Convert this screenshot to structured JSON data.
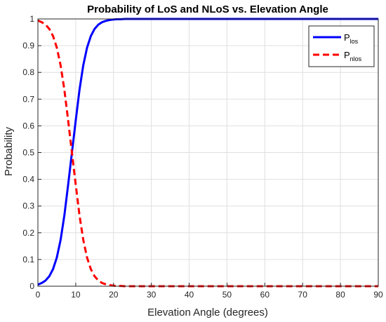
{
  "chart_data": {
    "type": "line",
    "title": "Probability of LoS and NLoS vs. Elevation Angle",
    "xlabel": "Elevation Angle (degrees)",
    "ylabel": "Probability",
    "xlim": [
      0,
      90
    ],
    "ylim": [
      0,
      1
    ],
    "grid": true,
    "legend_position": "top-right",
    "x_ticks": [
      "0",
      "10",
      "20",
      "30",
      "40",
      "50",
      "60",
      "70",
      "80",
      "90"
    ],
    "y_ticks": [
      "0",
      "0.1",
      "0.2",
      "0.3",
      "0.4",
      "0.5",
      "0.6",
      "0.7",
      "0.8",
      "0.9",
      "1"
    ],
    "x": [
      0,
      1,
      2,
      3,
      4,
      5,
      6,
      7,
      8,
      9,
      10,
      11,
      12,
      13,
      14,
      15,
      16,
      17,
      18,
      19,
      20,
      21,
      22,
      23,
      24,
      25,
      30,
      35,
      40,
      45,
      50,
      55,
      60,
      65,
      70,
      75,
      80,
      85,
      90
    ],
    "series": [
      {
        "legend_main": "P",
        "legend_sub": "los",
        "color": "#0000ff",
        "style": "solid",
        "values": [
          0.006,
          0.012,
          0.021,
          0.037,
          0.064,
          0.107,
          0.173,
          0.265,
          0.38,
          0.5,
          0.62,
          0.735,
          0.827,
          0.893,
          0.936,
          0.963,
          0.979,
          0.988,
          0.993,
          0.996,
          0.998,
          0.999,
          0.999,
          1.0,
          1.0,
          1.0,
          1.0,
          1.0,
          1.0,
          1.0,
          1.0,
          1.0,
          1.0,
          1.0,
          1.0,
          1.0,
          1.0,
          1.0,
          1.0
        ]
      },
      {
        "legend_main": "P",
        "legend_sub": "nlos",
        "color": "#ff0000",
        "style": "dashed",
        "values": [
          0.994,
          0.988,
          0.979,
          0.963,
          0.936,
          0.893,
          0.827,
          0.735,
          0.62,
          0.5,
          0.38,
          0.265,
          0.173,
          0.107,
          0.064,
          0.037,
          0.021,
          0.012,
          0.007,
          0.004,
          0.002,
          0.001,
          0.001,
          0.0,
          0.0,
          0.0,
          0.0,
          0.0,
          0.0,
          0.0,
          0.0,
          0.0,
          0.0,
          0.0,
          0.0,
          0.0,
          0.0,
          0.0,
          0.0
        ]
      }
    ]
  }
}
